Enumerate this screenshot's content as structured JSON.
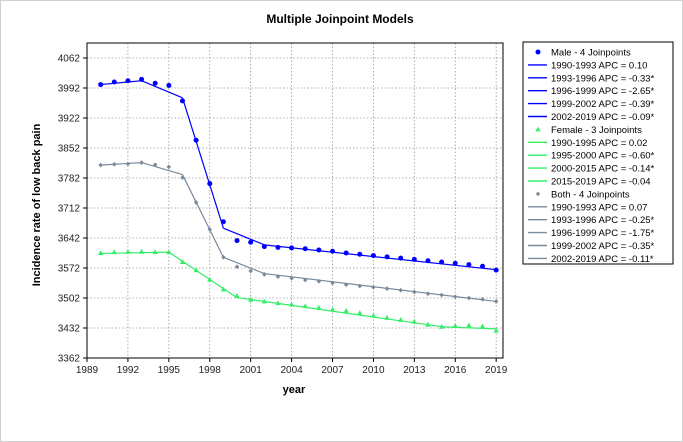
{
  "chart_data": {
    "type": "line",
    "title": "Multiple Joinpoint Models",
    "xlabel": "year",
    "ylabel": "Incidence rate of low back pain",
    "xlim": [
      1989,
      2019.5
    ],
    "ylim": [
      3362,
      4097
    ],
    "x_ticks": [
      1989,
      1992,
      1995,
      1998,
      2001,
      2004,
      2007,
      2010,
      2013,
      2016,
      2019
    ],
    "x_tick_labels": [
      "1989",
      "1992",
      "1995",
      "1998",
      "2001",
      "2004",
      "2007",
      "2010",
      "2013",
      "2016",
      "2019"
    ],
    "y_ticks": [
      3362,
      3432,
      3502,
      3572,
      3642,
      3712,
      3782,
      3852,
      3922,
      3992,
      4062
    ],
    "y_tick_labels": [
      "3362",
      "3432",
      "3502",
      "3572",
      "3642",
      "3712",
      "3782",
      "3852",
      "3922",
      "3992",
      "4062"
    ],
    "grid": true,
    "legend_position": "right",
    "x": [
      1990,
      1991,
      1992,
      1993,
      1994,
      1995,
      1996,
      1997,
      1998,
      1999,
      2000,
      2001,
      2002,
      2003,
      2004,
      2005,
      2006,
      2007,
      2008,
      2009,
      2010,
      2011,
      2012,
      2013,
      2014,
      2015,
      2016,
      2017,
      2018,
      2019
    ],
    "series": [
      {
        "name": "Male - 4 Joinpoints",
        "color": "#0000ff",
        "marker": "circle",
        "observed": [
          4000,
          4006,
          4009,
          4012,
          4003,
          3998,
          3962,
          3870,
          3769,
          3680,
          3636,
          3632,
          3622,
          3620,
          3619,
          3617,
          3614,
          3611,
          3607,
          3604,
          3601,
          3598,
          3595,
          3592,
          3589,
          3586,
          3583,
          3580,
          3576,
          3567
        ],
        "segments": [
          {
            "label": "1990-1993 APC =  0.10",
            "x": [
              1990,
              1993
            ],
            "y": [
              4000,
              4009
            ]
          },
          {
            "label": "1993-1996 APC = -0.33*",
            "x": [
              1993,
              1996
            ],
            "y": [
              4009,
              3969
            ]
          },
          {
            "label": "1996-1999 APC = -2.65*",
            "x": [
              1996,
              1999
            ],
            "y": [
              3969,
              3665
            ]
          },
          {
            "label": "1999-2002 APC = -0.39*",
            "x": [
              1999,
              2002
            ],
            "y": [
              3665,
              3626
            ]
          },
          {
            "label": "2002-2019 APC = -0.09*",
            "x": [
              2002,
              2019
            ],
            "y": [
              3626,
              3568
            ]
          }
        ]
      },
      {
        "name": "Female - 3 Joinpoints",
        "color": "#33ee66",
        "marker": "triangle",
        "observed": [
          3607,
          3609,
          3610,
          3610,
          3609,
          3609,
          3586,
          3567,
          3545,
          3522,
          3507,
          3498,
          3494,
          3490,
          3487,
          3483,
          3479,
          3475,
          3472,
          3467,
          3461,
          3456,
          3451,
          3447,
          3440,
          3435,
          3437,
          3438,
          3436,
          3426
        ],
        "segments": [
          {
            "label": "1990-1995 APC =  0.02",
            "x": [
              1990,
              1995
            ],
            "y": [
              3606,
              3609
            ]
          },
          {
            "label": "1995-2000 APC = -0.60*",
            "x": [
              1995,
              2000
            ],
            "y": [
              3609,
              3503
            ]
          },
          {
            "label": "2000-2015 APC = -0.14*",
            "x": [
              2000,
              2015
            ],
            "y": [
              3503,
              3435
            ]
          },
          {
            "label": "2015-2019 APC = -0.04",
            "x": [
              2015,
              2019
            ],
            "y": [
              3435,
              3430
            ]
          }
        ]
      },
      {
        "name": "Both - 4 Joinpoints",
        "color": "#7a8a9a",
        "marker": "diamond",
        "observed": [
          3812,
          3814,
          3815,
          3818,
          3813,
          3808,
          3783,
          3725,
          3662,
          3597,
          3575,
          3565,
          3557,
          3552,
          3548,
          3544,
          3541,
          3537,
          3533,
          3530,
          3527,
          3524,
          3520,
          3516,
          3512,
          3509,
          3505,
          3502,
          3499,
          3494
        ],
        "segments": [
          {
            "label": "1990-1993 APC =  0.07",
            "x": [
              1990,
              1993
            ],
            "y": [
              3812,
              3818
            ]
          },
          {
            "label": "1993-1996 APC = -0.25*",
            "x": [
              1993,
              1996
            ],
            "y": [
              3818,
              3790
            ]
          },
          {
            "label": "1996-1999 APC = -1.75*",
            "x": [
              1996,
              1999
            ],
            "y": [
              3790,
              3597
            ]
          },
          {
            "label": "1999-2002 APC = -0.35*",
            "x": [
              1999,
              2002
            ],
            "y": [
              3597,
              3559
            ]
          },
          {
            "label": "2002-2019 APC = -0.11*",
            "x": [
              2002,
              2019
            ],
            "y": [
              3559,
              3494
            ]
          }
        ]
      }
    ]
  }
}
